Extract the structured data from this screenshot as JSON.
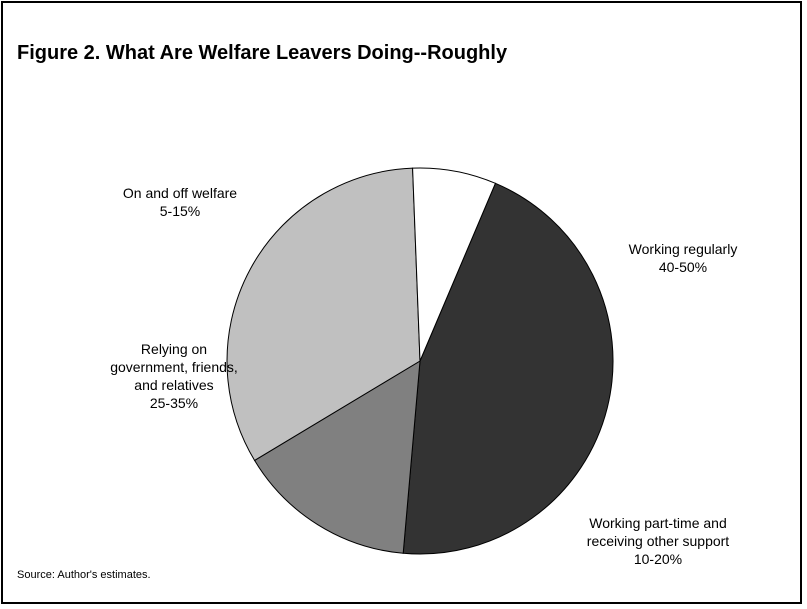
{
  "chart_data": {
    "type": "pie",
    "title": "Figure 2. What Are Welfare Leavers Doing--Roughly",
    "slices": [
      {
        "name": "Working regularly",
        "range": "40-50%",
        "label_lines": [
          "Working regularly",
          "40-50%"
        ],
        "value": 45,
        "color": "#333333"
      },
      {
        "name": "Working part-time and receiving other support",
        "range": "10-20%",
        "label_lines": [
          "Working part-time and",
          "receiving other support",
          "10-20%"
        ],
        "value": 15,
        "color": "#808080"
      },
      {
        "name": "Relying on government, friends, and relatives",
        "range": "25-35%",
        "label_lines": [
          "Relying on",
          "government, friends,",
          "and relatives",
          "25-35%"
        ],
        "value": 33,
        "color": "#c0c0c0"
      },
      {
        "name": "On and off welfare",
        "range": "5-15%",
        "label_lines": [
          "On and off welfare",
          "5-15%"
        ],
        "value": 7,
        "color": "#ffffff"
      }
    ],
    "start_angle_deg": 23,
    "direction": "clockwise",
    "legend": "none"
  },
  "source": "Source: Author's estimates."
}
